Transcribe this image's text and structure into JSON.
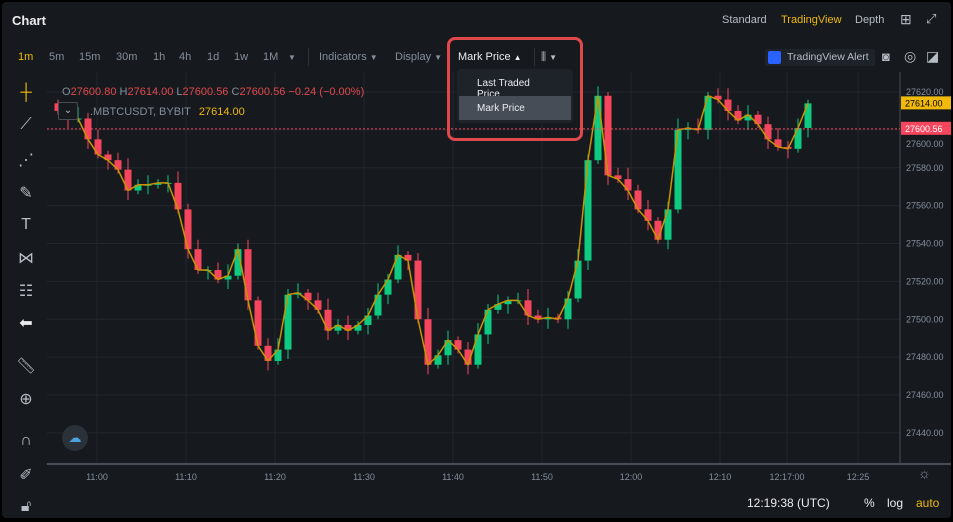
{
  "header": {
    "title": "Chart",
    "views": [
      "Standard",
      "TradingView",
      "Depth"
    ],
    "active_view": "TradingView"
  },
  "toolbar": {
    "intervals": [
      "1m",
      "5m",
      "15m",
      "30m",
      "1h",
      "4h",
      "1d",
      "1w",
      "1M"
    ],
    "active_interval": "1m",
    "indicators": "Indicators",
    "display": "Display",
    "price_type": "Mark Price",
    "tv_alert": "TradingView Alert"
  },
  "dropdown": {
    "items": [
      "Last Traded Price",
      "Mark Price"
    ],
    "selected": "Mark Price"
  },
  "legend": {
    "o_label": "O",
    "o": "27600.80",
    "h_label": "H",
    "h": "27614.00",
    "l_label": "L",
    "l": "27600.56",
    "c_label": "C",
    "c": "27600.56",
    "change": "−0.24 (−0.00%)",
    "symbol": ".MBTCUSDT, BYBIT",
    "last": "27614.00"
  },
  "chart_data": {
    "type": "candlestick",
    "price_ticks": [
      27620,
      27600,
      27580,
      27560,
      27540,
      27520,
      27500,
      27480,
      27460,
      27440
    ],
    "price_tags": {
      "last": "27614.00",
      "mark": "27600.56"
    },
    "time_ticks": [
      "11:00",
      "11:10",
      "11:20",
      "11:30",
      "11:40",
      "11:50",
      "12:00",
      "12:10",
      "12:17:00",
      "12:25"
    ],
    "closes": [
      27610,
      27606,
      27606,
      27595,
      27587,
      27584,
      27579,
      27568,
      27571,
      27571,
      27572,
      27572,
      27558,
      27537,
      27526,
      27526,
      27521,
      27523,
      27537,
      27510,
      27486,
      27478,
      27484,
      27513,
      27514,
      27510,
      27505,
      27494,
      27497,
      27494,
      27497,
      27502,
      27513,
      27521,
      27534,
      27531,
      27500,
      27476,
      27481,
      27489,
      27484,
      27476,
      27492,
      27505,
      27508,
      27510,
      27510,
      27502,
      27500,
      27501,
      27500,
      27511,
      27531,
      27584,
      27618,
      27576,
      27574,
      27568,
      27558,
      27552,
      27542,
      27558,
      27600,
      27601,
      27600,
      27618,
      27616,
      27610,
      27605,
      27608,
      27603,
      27595,
      27591,
      27590,
      27601,
      27614
    ],
    "colors": {
      "up": "#0ecb81",
      "down": "#f6465d",
      "line": "#c99400"
    }
  },
  "status": {
    "time": "12:19:38 (UTC)",
    "percent": "%",
    "log": "log",
    "auto": "auto"
  },
  "colors": {
    "accent": "#f0b90b",
    "highlight": "#e0484c"
  }
}
